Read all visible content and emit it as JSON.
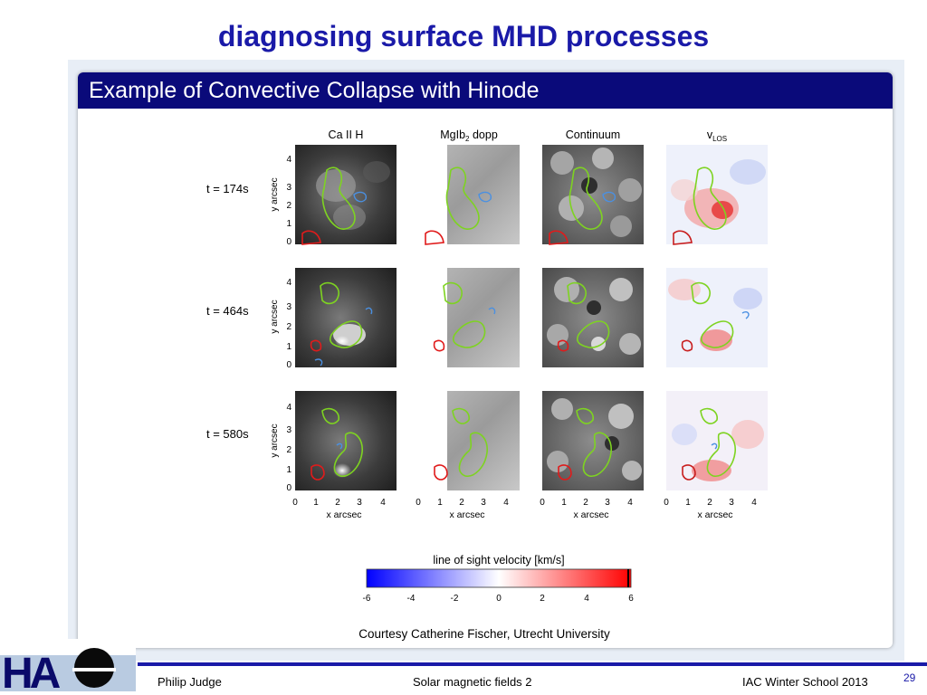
{
  "slide": {
    "title": "diagnosing surface MHD processes",
    "panel_title": "Example of Convective Collapse with Hinode",
    "credit": "Courtesy Catherine Fischer, Utrecht University"
  },
  "figure": {
    "column_titles": [
      "Ca II H",
      "MgIb",
      "Continuum",
      "v"
    ],
    "mgib_sub": "2",
    "mgib_suffix": " dopp",
    "vlos_sub": "LOS",
    "row_labels": [
      "t = 174s",
      "t = 464s",
      "t = 580s"
    ],
    "y_label": "y arcsec",
    "x_label": "x arcsec",
    "y_ticks": [
      "0",
      "1",
      "2",
      "3",
      "4"
    ],
    "x_ticks": [
      "0",
      "1",
      "2",
      "3",
      "4"
    ],
    "colorbar": {
      "title": "line of sight velocity [km/s]",
      "ticks": [
        "-6",
        "-4",
        "-2",
        "0",
        "2",
        "4",
        "6"
      ],
      "range": [
        -6,
        6
      ],
      "colors": {
        "negative": "#0000ff",
        "zero": "#ffffff",
        "positive": "#ff0000"
      }
    }
  },
  "footer": {
    "author": "Philip Judge",
    "talk": "Solar magnetic fields 2",
    "event": "IAC Winter School 2013",
    "page": "29"
  },
  "logo": {
    "text": "HAO",
    "color": "#0a0a6a"
  }
}
